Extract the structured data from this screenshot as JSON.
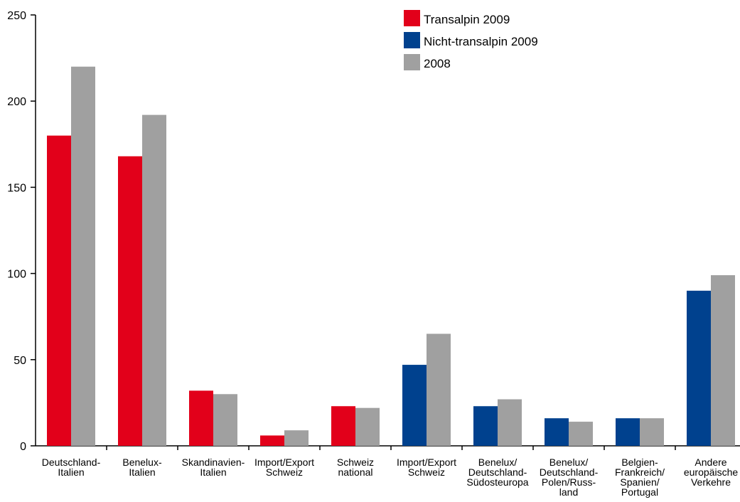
{
  "colors": {
    "transalpin": "#E2001A",
    "nicht_transalpin": "#00418E",
    "y2008": "#A0A0A0"
  },
  "chart_data": {
    "type": "bar",
    "title": "",
    "xlabel": "",
    "ylabel": "",
    "ylim": [
      0,
      250
    ],
    "yticks": [
      0,
      50,
      100,
      150,
      200,
      250
    ],
    "grid": false,
    "legend_position": "top-right",
    "legend": [
      {
        "label": "Transalpin 2009",
        "color_key": "transalpin"
      },
      {
        "label": "Nicht-transalpin 2009",
        "color_key": "nicht_transalpin"
      },
      {
        "label": "2008",
        "color_key": "y2008"
      }
    ],
    "categories": [
      [
        "Deutschland-",
        "Italien"
      ],
      [
        "Benelux-",
        "Italien"
      ],
      [
        "Skandinavien-",
        "Italien"
      ],
      [
        "Import/Export",
        "Schweiz"
      ],
      [
        "Schweiz",
        "national"
      ],
      [
        "Import/Export",
        "Schweiz"
      ],
      [
        "Benelux/",
        "Deutschland-",
        "Südosteuropa"
      ],
      [
        "Benelux/",
        "Deutschland-",
        "Polen/Russ-",
        "land"
      ],
      [
        "Belgien-",
        "Frankreich/",
        "Spanien/",
        "Portugal"
      ],
      [
        "Andere",
        "europäische",
        "Verkehre"
      ]
    ],
    "series": [
      {
        "name": "2009",
        "values": [
          180,
          168,
          32,
          6,
          23,
          47,
          23,
          16,
          16,
          90
        ],
        "color_keys": [
          "transalpin",
          "transalpin",
          "transalpin",
          "transalpin",
          "transalpin",
          "nicht_transalpin",
          "nicht_transalpin",
          "nicht_transalpin",
          "nicht_transalpin",
          "nicht_transalpin"
        ]
      },
      {
        "name": "2008",
        "values": [
          220,
          192,
          30,
          9,
          22,
          65,
          27,
          14,
          16,
          99
        ],
        "color_keys": [
          "y2008",
          "y2008",
          "y2008",
          "y2008",
          "y2008",
          "y2008",
          "y2008",
          "y2008",
          "y2008",
          "y2008"
        ]
      }
    ]
  }
}
